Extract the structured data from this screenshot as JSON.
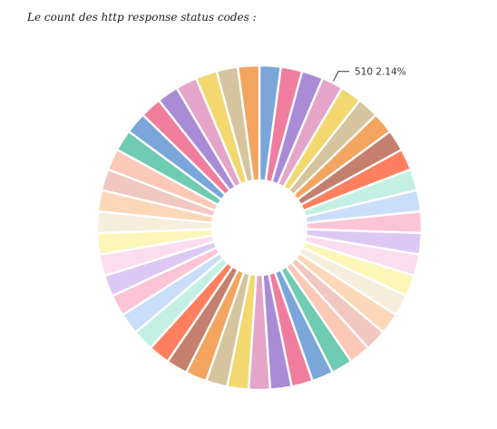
{
  "chart_data": {
    "type": "pie",
    "title": "Le count des http response status codes :",
    "donut": true,
    "slice_count": 47,
    "values": [
      2.14,
      2.14,
      2.14,
      2.14,
      2.14,
      2.14,
      2.14,
      2.14,
      2.14,
      2.14,
      2.14,
      2.14,
      2.14,
      2.14,
      2.14,
      2.14,
      2.14,
      2.14,
      2.14,
      2.14,
      2.14,
      2.14,
      2.14,
      2.14,
      2.14,
      2.14,
      2.14,
      2.14,
      2.14,
      2.14,
      2.14,
      2.14,
      2.14,
      2.14,
      2.14,
      2.14,
      2.14,
      2.14,
      2.14,
      2.14,
      2.14,
      2.14,
      2.14,
      2.14,
      2.14,
      2.14,
      2.14
    ],
    "colors": [
      "#7aa6da",
      "#f07d9e",
      "#a98bd6",
      "#e4a5c9",
      "#f2d86e",
      "#d6c49e",
      "#f3a560",
      "#c47f6e",
      "#ff7f5f",
      "#c4f0e4",
      "#c9def8",
      "#fcc4d6",
      "#dcc9f3",
      "#fcdcef",
      "#fdf6b8",
      "#f5eedb",
      "#fcd8b8",
      "#f0c8c0",
      "#fcc8b8",
      "#6fcbb2",
      "#7aa6da",
      "#f07d9e",
      "#a98bd6",
      "#e4a5c9",
      "#f2d86e",
      "#d6c49e",
      "#f3a560",
      "#c47f6e",
      "#ff7f5f",
      "#c4f0e4",
      "#c9def8",
      "#fcc4d6",
      "#dcc9f3",
      "#fcdcef",
      "#fdf6b8",
      "#f5eedb",
      "#fcd8b8",
      "#f0c8c0",
      "#fcc8b8",
      "#6fcbb2",
      "#7aa6da",
      "#f07d9e",
      "#a98bd6",
      "#e4a5c9",
      "#f2d86e",
      "#d6c49e",
      "#f3a560"
    ],
    "annotation": {
      "label": "510",
      "percent": "2.14%",
      "slice_index": 3
    }
  }
}
